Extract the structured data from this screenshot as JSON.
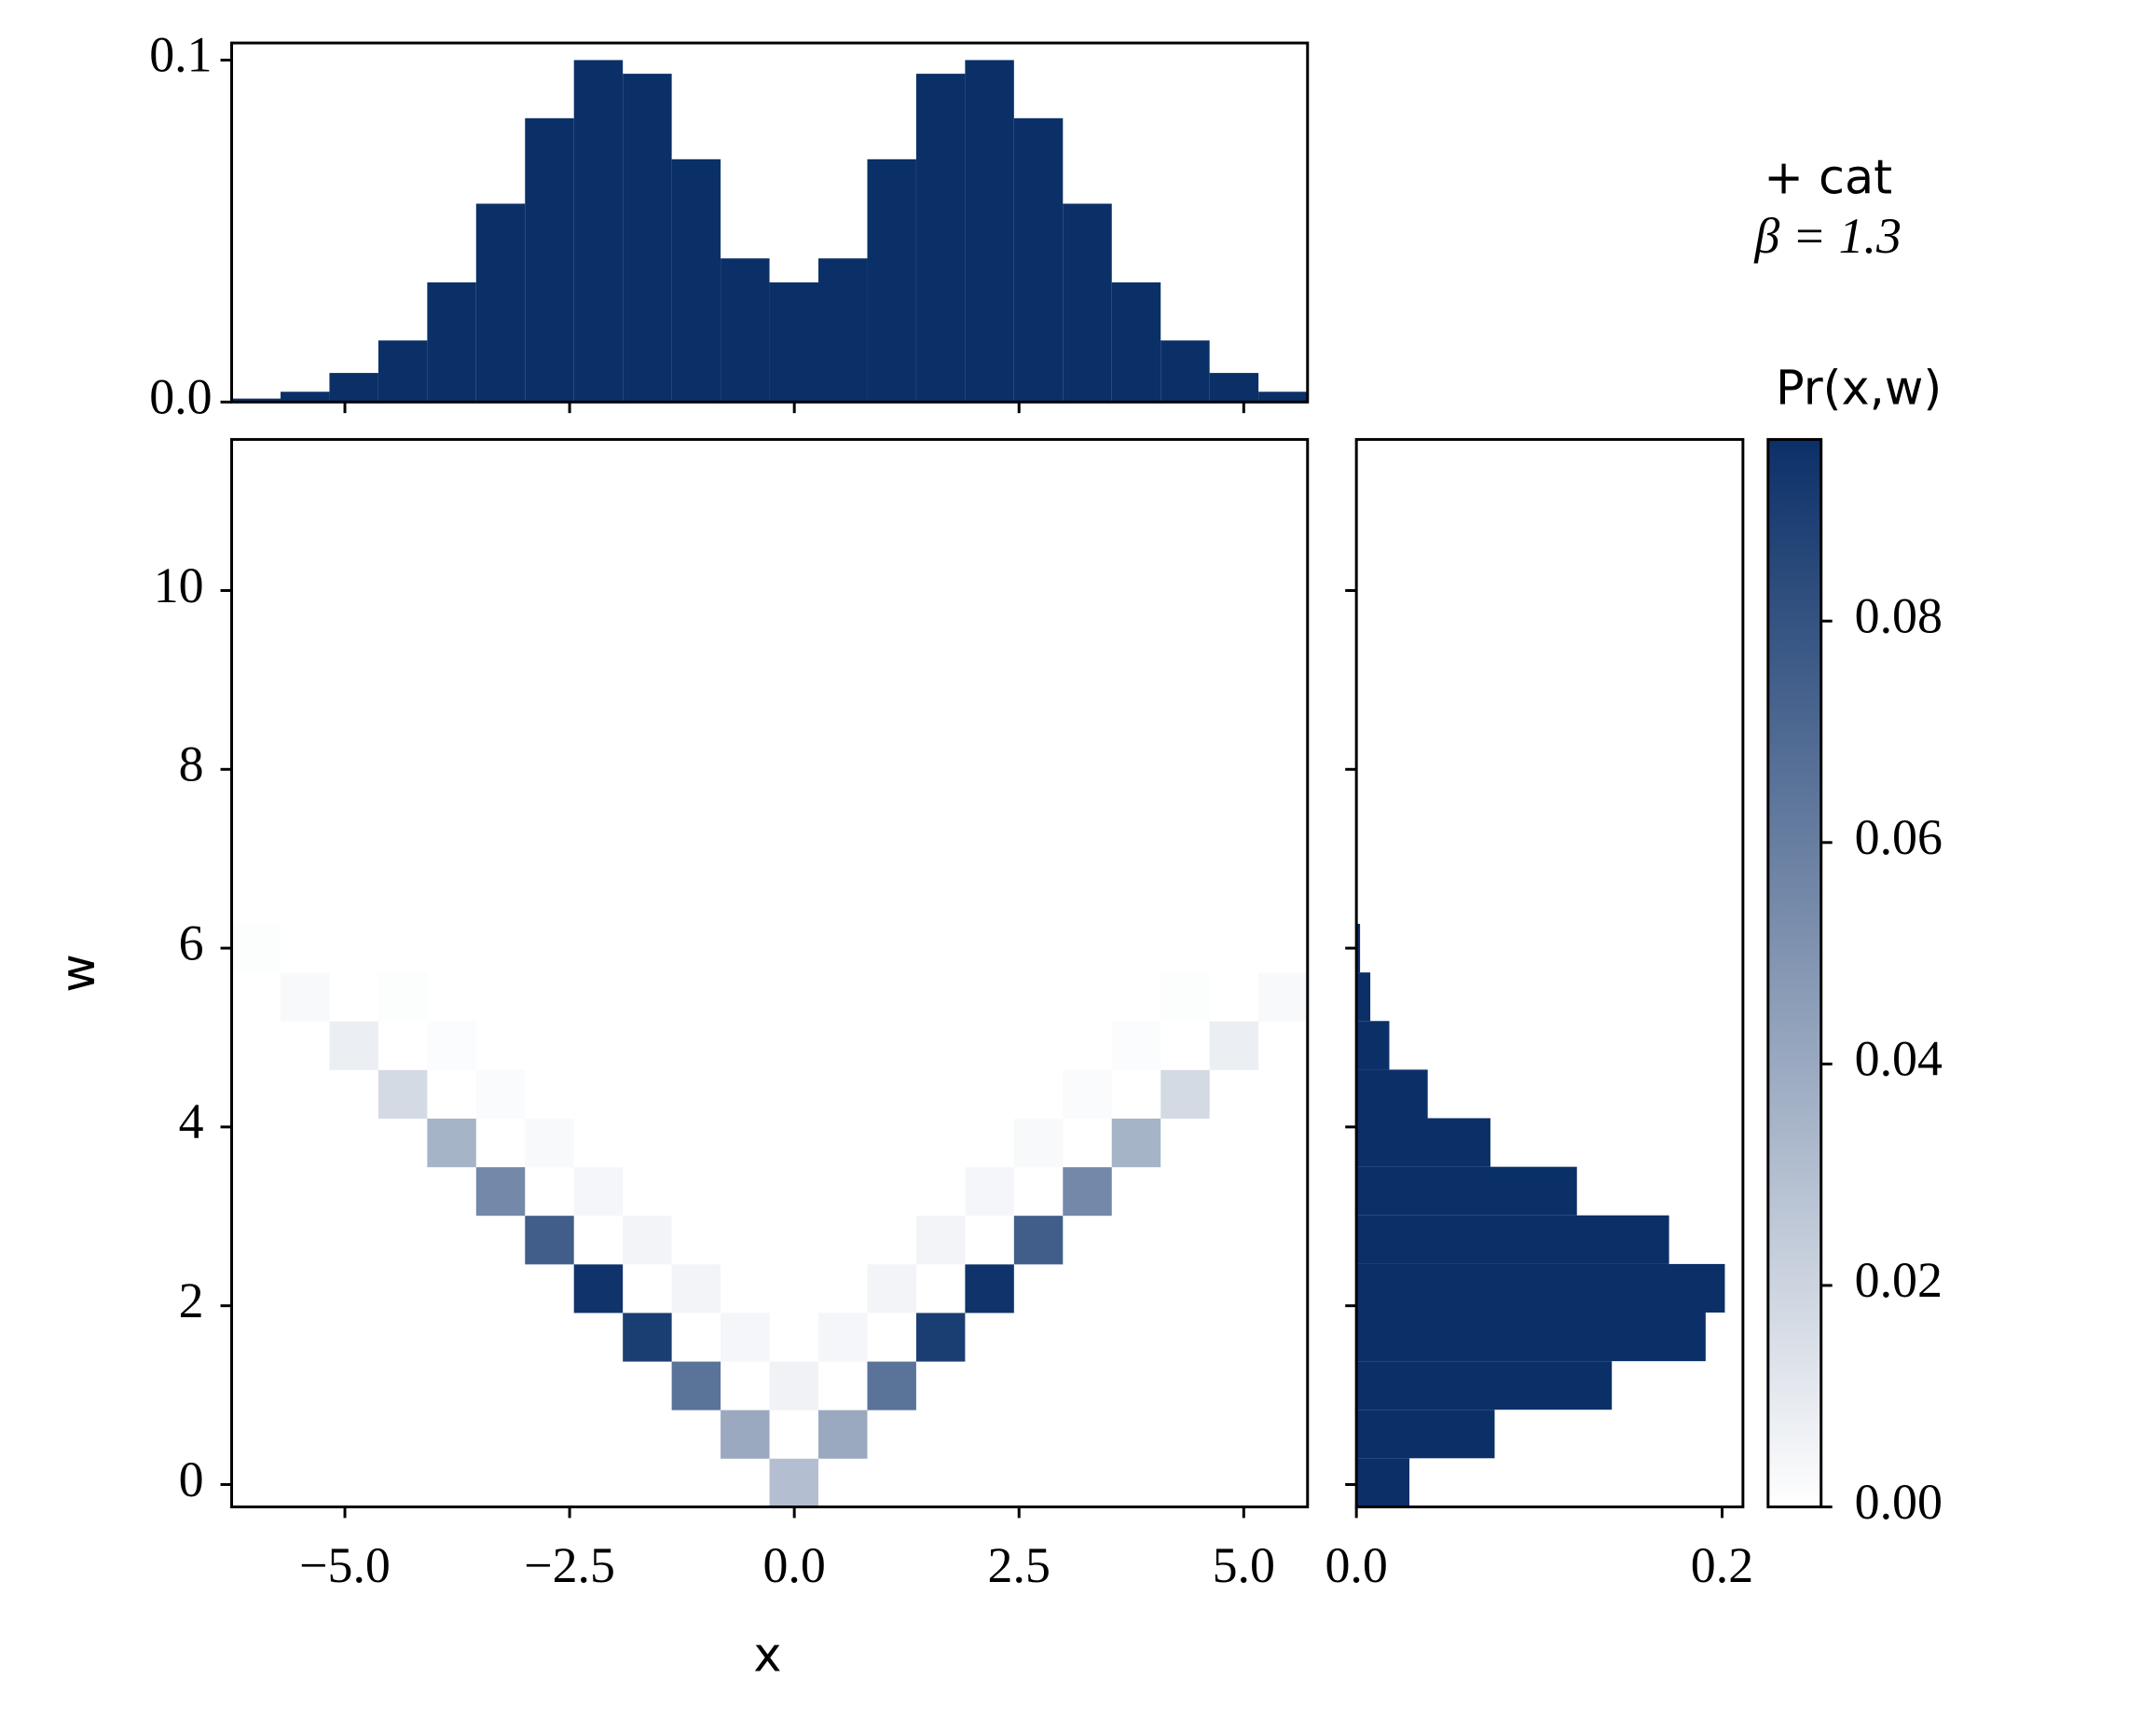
{
  "chart_data": [
    {
      "type": "histogram",
      "orientation": "vertical",
      "color": "#0b3068",
      "bins": [
        -6.26,
        -5.716,
        -5.172,
        -4.628,
        -4.084,
        -3.54,
        -2.996,
        -2.452,
        -1.908,
        -1.364,
        -0.82,
        -0.276,
        0.268,
        0.812,
        1.356,
        1.9,
        2.444,
        2.988,
        3.532,
        4.076,
        4.62,
        5.164,
        5.708
      ],
      "values": [
        0.001,
        0.003,
        0.0085,
        0.018,
        0.035,
        0.058,
        0.083,
        0.1,
        0.096,
        0.071,
        0.042,
        0.035,
        0.042,
        0.071,
        0.096,
        0.1,
        0.083,
        0.058,
        0.035,
        0.018,
        0.0085,
        0.003
      ],
      "xlim": [
        -6.26,
        5.71
      ],
      "ylim": [
        0,
        0.105
      ],
      "yticks": [
        {
          "value": 0,
          "label": "0.0"
        },
        0.1
      ]
    },
    {
      "type": "heatmap",
      "xlabel": "x",
      "ylabel": "w",
      "xbins": [
        -6.26,
        -5.716,
        -5.172,
        -4.628,
        -4.084,
        -3.54,
        -2.996,
        -2.452,
        -1.908,
        -1.364,
        -0.82,
        -0.276,
        0.268,
        0.812,
        1.356,
        1.9,
        2.444,
        2.988,
        3.532,
        4.076,
        4.62,
        5.164,
        5.708
      ],
      "ybins": [
        -0.25,
        0.294,
        0.837,
        1.38,
        1.924,
        2.467,
        3.011,
        3.554,
        4.098,
        4.641,
        5.185,
        5.728,
        6.272
      ],
      "z": [
        [
          0,
          0,
          0,
          0,
          0,
          0,
          0,
          0,
          0,
          0,
          0,
          0.03,
          0,
          0,
          0,
          0,
          0,
          0,
          0,
          0,
          0,
          0
        ],
        [
          0,
          0,
          0,
          0,
          0,
          0,
          0,
          0,
          0,
          0,
          0.04,
          0,
          0.04,
          0,
          0,
          0,
          0,
          0,
          0,
          0,
          0,
          0
        ],
        [
          0,
          0,
          0,
          0,
          0,
          0,
          0,
          0,
          0,
          0.065,
          0,
          0.006,
          0,
          0.065,
          0,
          0,
          0,
          0,
          0,
          0,
          0,
          0
        ],
        [
          0,
          0,
          0,
          0,
          0,
          0,
          0,
          0,
          0.09,
          0,
          0.004,
          0,
          0.004,
          0,
          0.09,
          0,
          0,
          0,
          0,
          0,
          0,
          0
        ],
        [
          0,
          0,
          0,
          0,
          0,
          0,
          0,
          0.095,
          0,
          0.005,
          0,
          0,
          0,
          0.005,
          0,
          0.095,
          0,
          0,
          0,
          0,
          0,
          0
        ],
        [
          0,
          0,
          0,
          0,
          0,
          0,
          0.075,
          0,
          0.005,
          0,
          0,
          0,
          0,
          0,
          0.005,
          0,
          0.075,
          0,
          0,
          0,
          0,
          0
        ],
        [
          0,
          0,
          0,
          0,
          0,
          0.055,
          0,
          0.004,
          0,
          0,
          0,
          0,
          0,
          0,
          0,
          0.004,
          0,
          0.055,
          0,
          0,
          0,
          0
        ],
        [
          0,
          0,
          0,
          0,
          0.035,
          0,
          0.003,
          0,
          0,
          0,
          0,
          0,
          0,
          0,
          0,
          0,
          0.003,
          0,
          0.035,
          0,
          0,
          0
        ],
        [
          0,
          0,
          0,
          0.017,
          0,
          0.002,
          0,
          0,
          0,
          0,
          0,
          0,
          0,
          0,
          0,
          0,
          0,
          0.002,
          0,
          0.017,
          0,
          0
        ],
        [
          0,
          0,
          0.008,
          0,
          0.0015,
          0,
          0,
          0,
          0,
          0,
          0,
          0,
          0,
          0,
          0,
          0,
          0,
          0,
          0.0015,
          0,
          0.008,
          0
        ],
        [
          0,
          0.003,
          0,
          0.001,
          0,
          0,
          0,
          0,
          0,
          0,
          0,
          0,
          0,
          0,
          0,
          0,
          0,
          0,
          0,
          0.001,
          0,
          0.003
        ],
        [
          0.001,
          0,
          0,
          0,
          0,
          0,
          0,
          0,
          0,
          0,
          0,
          0,
          0,
          0,
          0,
          0,
          0,
          0,
          0,
          0,
          0,
          0
        ]
      ],
      "colormap": [
        "#ffffff",
        "#0b3068"
      ],
      "xlim": [
        -6.26,
        5.71
      ],
      "ylim": [
        -0.25,
        11.69
      ],
      "xticks": [
        {
          "value": -5,
          "label": "−5.0"
        },
        {
          "value": -2.5,
          "label": "−2.5"
        },
        {
          "value": 0,
          "label": "0.0"
        },
        {
          "value": 2.5,
          "label": "2.5"
        },
        {
          "value": 5,
          "label": "5.0"
        }
      ],
      "yticks": [
        0,
        2,
        4,
        6,
        8,
        10
      ],
      "colorbar": {
        "label": "Pr(x,w)",
        "lim": [
          0,
          0.0964
        ],
        "ticks": [
          {
            "value": 0,
            "label": "0.00"
          },
          {
            "value": 0.02,
            "label": "0.02"
          },
          {
            "value": 0.04,
            "label": "0.04"
          },
          {
            "value": 0.06,
            "label": "0.06"
          },
          {
            "value": 0.08,
            "label": "0.08"
          }
        ]
      },
      "annotation": [
        "+ cat",
        "β = 1.3"
      ]
    },
    {
      "type": "histogram",
      "orientation": "horizontal",
      "color": "#0b3068",
      "bins": [
        -0.25,
        0.294,
        0.837,
        1.38,
        1.924,
        2.467,
        3.011,
        3.554,
        4.098,
        4.641,
        5.185,
        5.728,
        6.272
      ],
      "values": [
        0.029,
        0.0756,
        0.1397,
        0.191,
        0.2015,
        0.171,
        0.1206,
        0.0733,
        0.039,
        0.018,
        0.0076,
        0.002
      ],
      "xlim": [
        0,
        0.2114
      ],
      "ylim": [
        -0.25,
        11.69
      ],
      "xticks": [
        {
          "value": 0,
          "label": "0.0"
        },
        0.2
      ]
    }
  ]
}
